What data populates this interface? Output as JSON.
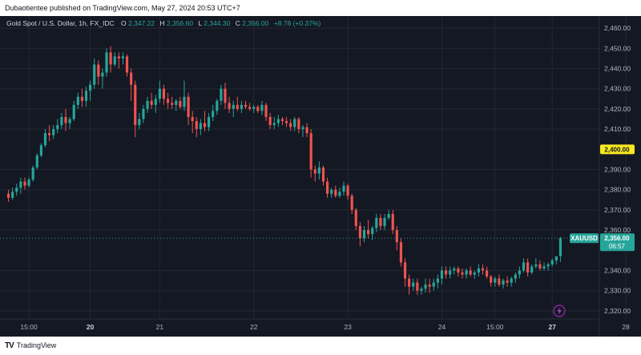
{
  "publisher_line": "Dubaotientee published on TradingView.com, May 27, 2024 20:53 UTC+7",
  "footer": {
    "logo_mark": "TV",
    "logo_text": "TradingView"
  },
  "legend": {
    "symbol": "Gold Spot / U.S. Dollar, 1h, FX_IDC",
    "o_label": "O",
    "o_value": "2,347.22",
    "h_label": "H",
    "h_value": "2,356.60",
    "l_label": "L",
    "l_value": "2,344.30",
    "c_label": "C",
    "c_value": "2,356.00",
    "change": "+8.78 (+0.37%)"
  },
  "price_tags": {
    "level_label": "2,400.00",
    "symbol_tag": "XAUUSD",
    "last_price": "2,356.00",
    "countdown": "06:57"
  },
  "colors": {
    "background": "#141823",
    "up": "#26a69a",
    "down": "#ef5350",
    "level_tag": "#f7e81f",
    "grid": "#232733",
    "axis_text": "#b2b5be",
    "lightning": "#9c27b0"
  },
  "chart_data": {
    "type": "candlestick",
    "title": "Gold Spot / U.S. Dollar, 1h, FX_IDC",
    "y_axis_side": "right",
    "ylim": [
      2316,
      2466
    ],
    "y_ticks": [
      2460,
      2450,
      2440,
      2430,
      2420,
      2410,
      2390,
      2380,
      2370,
      2360,
      2340,
      2330,
      2320
    ],
    "y_tick_labels": [
      "2,460.00",
      "2,450.00",
      "2,440.00",
      "2,430.00",
      "2,420.00",
      "2,410.00",
      "2,390.00",
      "2,380.00",
      "2,370.00",
      "2,360.00",
      "2,340.00",
      "2,330.00",
      "2,320.00"
    ],
    "x_ticks": [
      {
        "label": "15:00",
        "index": 5
      },
      {
        "label": "20",
        "index": 20,
        "bold": true
      },
      {
        "label": "21",
        "index": 37,
        "bold": false
      },
      {
        "label": "22",
        "index": 60,
        "bold": false
      },
      {
        "label": "23",
        "index": 83,
        "bold": false
      },
      {
        "label": "24",
        "index": 106,
        "bold": false
      },
      {
        "label": "15:00",
        "index": 119,
        "bold": false
      },
      {
        "label": "27",
        "index": 133,
        "bold": true
      },
      {
        "label": "28",
        "index": 151,
        "bold": false
      }
    ],
    "horizontal_level": 2400.0,
    "last_price": 2356.0,
    "candles": [
      [
        2378,
        2380,
        2374,
        2376
      ],
      [
        2376,
        2381,
        2375,
        2379
      ],
      [
        2379,
        2383,
        2377,
        2381
      ],
      [
        2381,
        2386,
        2378,
        2384
      ],
      [
        2384,
        2386,
        2380,
        2382
      ],
      [
        2382,
        2386,
        2381,
        2385
      ],
      [
        2385,
        2392,
        2384,
        2391
      ],
      [
        2391,
        2398,
        2390,
        2397
      ],
      [
        2397,
        2403,
        2396,
        2402
      ],
      [
        2402,
        2410,
        2401,
        2408
      ],
      [
        2408,
        2412,
        2404,
        2407
      ],
      [
        2407,
        2412,
        2405,
        2410
      ],
      [
        2410,
        2415,
        2408,
        2412
      ],
      [
        2412,
        2418,
        2410,
        2416
      ],
      [
        2416,
        2420,
        2409,
        2413
      ],
      [
        2413,
        2416,
        2410,
        2415
      ],
      [
        2415,
        2424,
        2414,
        2422
      ],
      [
        2422,
        2428,
        2420,
        2426
      ],
      [
        2426,
        2430,
        2421,
        2424
      ],
      [
        2424,
        2431,
        2421,
        2429
      ],
      [
        2429,
        2434,
        2424,
        2432
      ],
      [
        2432,
        2445,
        2430,
        2442
      ],
      [
        2442,
        2444,
        2432,
        2436
      ],
      [
        2436,
        2440,
        2430,
        2438
      ],
      [
        2438,
        2450,
        2436,
        2448
      ],
      [
        2448,
        2451,
        2438,
        2442
      ],
      [
        2442,
        2448,
        2441,
        2446
      ],
      [
        2446,
        2448,
        2440,
        2445
      ],
      [
        2445,
        2448,
        2442,
        2446
      ],
      [
        2446,
        2447,
        2436,
        2438
      ],
      [
        2438,
        2440,
        2424,
        2432
      ],
      [
        2432,
        2434,
        2406,
        2412
      ],
      [
        2412,
        2418,
        2410,
        2415
      ],
      [
        2415,
        2422,
        2413,
        2420
      ],
      [
        2420,
        2426,
        2418,
        2424
      ],
      [
        2424,
        2428,
        2420,
        2422
      ],
      [
        2422,
        2427,
        2418,
        2425
      ],
      [
        2425,
        2434,
        2423,
        2430
      ],
      [
        2430,
        2432,
        2422,
        2425
      ],
      [
        2425,
        2428,
        2420,
        2423
      ],
      [
        2423,
        2426,
        2420,
        2422
      ],
      [
        2422,
        2425,
        2419,
        2424
      ],
      [
        2424,
        2426,
        2420,
        2421
      ],
      [
        2421,
        2434,
        2419,
        2426
      ],
      [
        2426,
        2428,
        2412,
        2416
      ],
      [
        2416,
        2419,
        2408,
        2414
      ],
      [
        2414,
        2416,
        2406,
        2410
      ],
      [
        2410,
        2415,
        2407,
        2413
      ],
      [
        2413,
        2419,
        2409,
        2411
      ],
      [
        2411,
        2418,
        2409,
        2416
      ],
      [
        2416,
        2422,
        2414,
        2419
      ],
      [
        2419,
        2425,
        2417,
        2424
      ],
      [
        2424,
        2432,
        2422,
        2430
      ],
      [
        2430,
        2433,
        2420,
        2423
      ],
      [
        2423,
        2426,
        2418,
        2420
      ],
      [
        2420,
        2424,
        2416,
        2422
      ],
      [
        2422,
        2426,
        2419,
        2420
      ],
      [
        2420,
        2424,
        2418,
        2422
      ],
      [
        2422,
        2424,
        2420,
        2421
      ],
      [
        2421,
        2423,
        2419,
        2420
      ],
      [
        2420,
        2422,
        2418,
        2421
      ],
      [
        2421,
        2422,
        2418,
        2419
      ],
      [
        2419,
        2424,
        2417,
        2422
      ],
      [
        2422,
        2423,
        2414,
        2416
      ],
      [
        2416,
        2418,
        2410,
        2412
      ],
      [
        2412,
        2416,
        2410,
        2413
      ],
      [
        2413,
        2417,
        2411,
        2415
      ],
      [
        2415,
        2416,
        2412,
        2414
      ],
      [
        2414,
        2416,
        2411,
        2413
      ],
      [
        2413,
        2415,
        2409,
        2411
      ],
      [
        2411,
        2416,
        2409,
        2415
      ],
      [
        2415,
        2416,
        2408,
        2410
      ],
      [
        2410,
        2412,
        2406,
        2411
      ],
      [
        2411,
        2413,
        2406,
        2408
      ],
      [
        2408,
        2410,
        2386,
        2390
      ],
      [
        2390,
        2392,
        2384,
        2388
      ],
      [
        2388,
        2394,
        2385,
        2391
      ],
      [
        2391,
        2392,
        2382,
        2384
      ],
      [
        2384,
        2386,
        2376,
        2378
      ],
      [
        2378,
        2381,
        2376,
        2380
      ],
      [
        2380,
        2382,
        2376,
        2377
      ],
      [
        2377,
        2381,
        2376,
        2379
      ],
      [
        2379,
        2384,
        2377,
        2382
      ],
      [
        2382,
        2383,
        2375,
        2377
      ],
      [
        2377,
        2378,
        2368,
        2370
      ],
      [
        2370,
        2371,
        2360,
        2362
      ],
      [
        2362,
        2364,
        2352,
        2356
      ],
      [
        2356,
        2362,
        2354,
        2360
      ],
      [
        2360,
        2365,
        2356,
        2358
      ],
      [
        2358,
        2362,
        2355,
        2361
      ],
      [
        2361,
        2368,
        2359,
        2366
      ],
      [
        2366,
        2368,
        2360,
        2362
      ],
      [
        2362,
        2368,
        2360,
        2366
      ],
      [
        2366,
        2370,
        2365,
        2368
      ],
      [
        2368,
        2370,
        2358,
        2360
      ],
      [
        2360,
        2362,
        2350,
        2354
      ],
      [
        2354,
        2356,
        2342,
        2344
      ],
      [
        2344,
        2346,
        2332,
        2336
      ],
      [
        2336,
        2338,
        2328,
        2332
      ],
      [
        2332,
        2336,
        2330,
        2334
      ],
      [
        2334,
        2336,
        2328,
        2330
      ],
      [
        2330,
        2332,
        2328,
        2331
      ],
      [
        2331,
        2336,
        2329,
        2333
      ],
      [
        2333,
        2336,
        2329,
        2332
      ],
      [
        2332,
        2336,
        2330,
        2334
      ],
      [
        2334,
        2338,
        2331,
        2336
      ],
      [
        2336,
        2342,
        2333,
        2340
      ],
      [
        2340,
        2342,
        2336,
        2338
      ],
      [
        2338,
        2342,
        2336,
        2340
      ],
      [
        2340,
        2342,
        2338,
        2341
      ],
      [
        2341,
        2342,
        2337,
        2339
      ],
      [
        2339,
        2341,
        2336,
        2338
      ],
      [
        2338,
        2341,
        2336,
        2340
      ],
      [
        2340,
        2342,
        2337,
        2338
      ],
      [
        2338,
        2340,
        2336,
        2339
      ],
      [
        2339,
        2343,
        2337,
        2341
      ],
      [
        2341,
        2343,
        2338,
        2340
      ],
      [
        2340,
        2342,
        2336,
        2337
      ],
      [
        2337,
        2338,
        2332,
        2334
      ],
      [
        2334,
        2337,
        2332,
        2336
      ],
      [
        2336,
        2338,
        2332,
        2333
      ],
      [
        2333,
        2336,
        2331,
        2335
      ],
      [
        2335,
        2337,
        2332,
        2334
      ],
      [
        2334,
        2337,
        2332,
        2336
      ],
      [
        2336,
        2339,
        2334,
        2338
      ],
      [
        2338,
        2342,
        2336,
        2340
      ],
      [
        2340,
        2346,
        2339,
        2344
      ],
      [
        2344,
        2346,
        2337,
        2339
      ],
      [
        2339,
        2343,
        2338,
        2342
      ],
      [
        2342,
        2346,
        2341,
        2343
      ],
      [
        2343,
        2345,
        2340,
        2341
      ],
      [
        2341,
        2344,
        2340,
        2342
      ],
      [
        2342,
        2344,
        2340,
        2343
      ],
      [
        2343,
        2346,
        2342,
        2345
      ],
      [
        2345,
        2347,
        2343,
        2347
      ],
      [
        2347.22,
        2356.6,
        2344.3,
        2356
      ]
    ]
  }
}
